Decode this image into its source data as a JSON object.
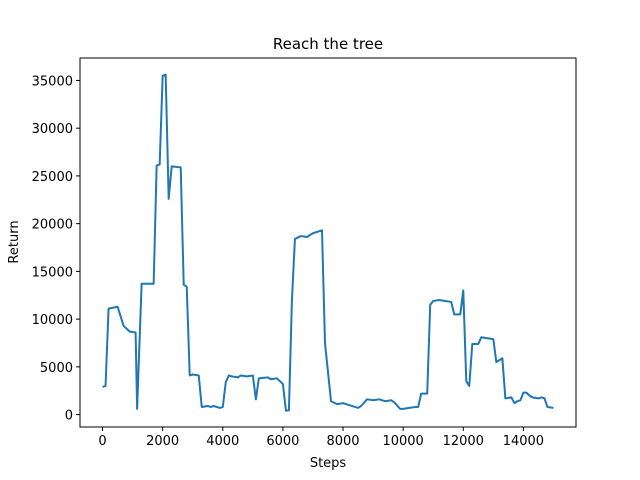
{
  "chart_data": {
    "type": "line",
    "title": "Reach the tree",
    "xlabel": "Steps",
    "ylabel": "Return",
    "color": "#1f77b4",
    "x": [
      0,
      100,
      200,
      500,
      700,
      900,
      1100,
      1150,
      1300,
      1700,
      1800,
      1900,
      2000,
      2100,
      2200,
      2300,
      2600,
      2700,
      2800,
      2900,
      3000,
      3200,
      3300,
      3500,
      3600,
      3700,
      3900,
      4000,
      4100,
      4200,
      4300,
      4500,
      4600,
      4800,
      5000,
      5100,
      5200,
      5500,
      5600,
      5800,
      6000,
      6100,
      6200,
      6300,
      6400,
      6600,
      6800,
      7000,
      7300,
      7400,
      7600,
      7800,
      8000,
      8200,
      8400,
      8500,
      8600,
      8800,
      9000,
      9200,
      9400,
      9600,
      9700,
      9900,
      10000,
      10200,
      10400,
      10500,
      10600,
      10800,
      10900,
      11000,
      11200,
      11400,
      11600,
      11700,
      11900,
      12000,
      12100,
      12200,
      12300,
      12500,
      12600,
      12800,
      13000,
      13100,
      13300,
      13400,
      13600,
      13700,
      13800,
      13900,
      14000,
      14100,
      14200,
      14300,
      14500,
      14600,
      14700,
      14800,
      15000
    ],
    "values": [
      2900,
      3000,
      11100,
      11300,
      9300,
      8700,
      8600,
      600,
      13700,
      13700,
      26100,
      26200,
      35500,
      35600,
      22600,
      26000,
      25900,
      13600,
      13400,
      4100,
      4200,
      4100,
      800,
      900,
      800,
      900,
      700,
      800,
      3400,
      4100,
      4000,
      3900,
      4100,
      4000,
      4100,
      1600,
      3800,
      3900,
      3700,
      3800,
      3200,
      400,
      450,
      12000,
      18400,
      18700,
      18600,
      19000,
      19300,
      7500,
      1400,
      1100,
      1200,
      1000,
      800,
      700,
      900,
      1600,
      1500,
      1600,
      1400,
      1500,
      1300,
      600,
      600,
      700,
      800,
      800,
      2200,
      2200,
      11500,
      11900,
      12000,
      11900,
      11800,
      10500,
      10500,
      13000,
      3500,
      3000,
      7400,
      7400,
      8100,
      8000,
      7900,
      5500,
      5900,
      1700,
      1800,
      1200,
      1400,
      1500,
      2300,
      2300,
      2000,
      1800,
      1700,
      1800,
      1700,
      800,
      700
    ],
    "xlim": [
      -750,
      15750
    ],
    "xticks": [
      0,
      2000,
      4000,
      6000,
      8000,
      10000,
      12000,
      14000
    ],
    "ylim": [
      -1300,
      37350
    ],
    "yticks": [
      0,
      5000,
      10000,
      15000,
      20000,
      25000,
      30000,
      35000
    ]
  }
}
